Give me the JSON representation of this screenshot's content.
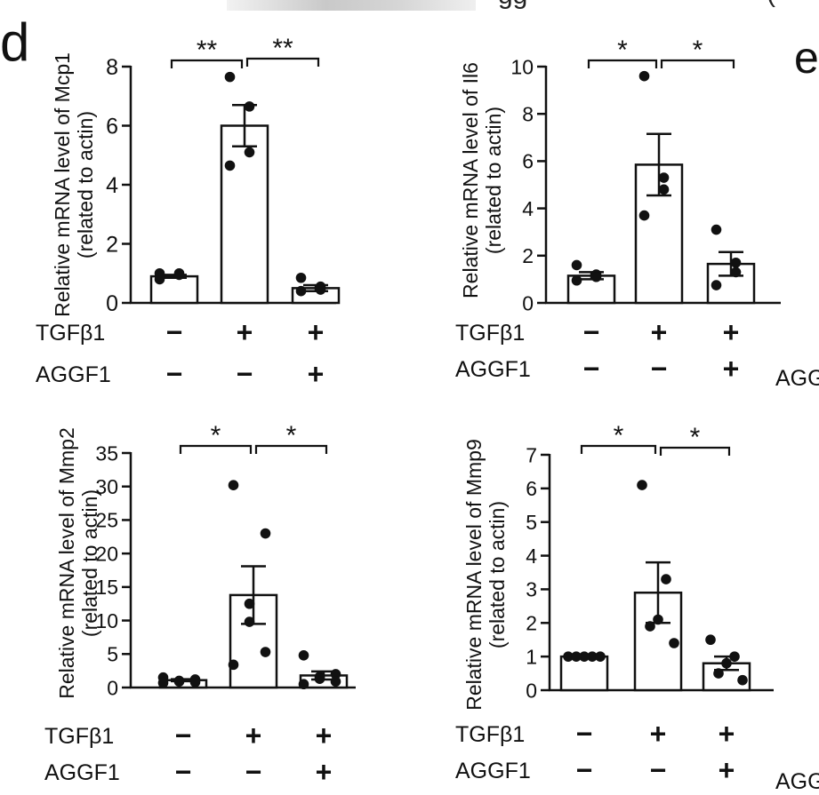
{
  "figure": {
    "panel_d_label": "d",
    "panel_e_label": "e",
    "row_labels": [
      "TGFβ1",
      "AGGF1"
    ],
    "edge_text_right_top": "AGG",
    "edge_text_right_bottom": "AGG",
    "top_fragment_text": "gg",
    "top_paren": "("
  },
  "chart_data": [
    {
      "type": "bar",
      "ylabel": [
        "Relative mRNA level of Mcp1",
        "(related to actin)"
      ],
      "ylim": [
        0,
        8
      ],
      "yticks": [
        0,
        2,
        4,
        6,
        8
      ],
      "categories": [
        "TGFβ1 − AGGF1 −",
        "TGFβ1 + AGGF1 −",
        "TGFβ1 + AGGF1 +"
      ],
      "treatment_rows": {
        "TGFβ1": [
          "−",
          "+",
          "+"
        ],
        "AGGF1": [
          "−",
          "−",
          "+"
        ]
      },
      "values": [
        0.9,
        6.0,
        0.5
      ],
      "sem": [
        0.05,
        0.7,
        0.1
      ],
      "points": [
        [
          1.0,
          1.0,
          0.95,
          0.8
        ],
        [
          7.65,
          6.65,
          5.1,
          4.65
        ],
        [
          0.85,
          0.55,
          0.45,
          0.4
        ]
      ],
      "significance": [
        {
          "from": 0,
          "to": 1,
          "label": "**"
        },
        {
          "from": 1,
          "to": 2,
          "label": "**"
        }
      ]
    },
    {
      "type": "bar",
      "ylabel": [
        "Relative mRNA level of Il6",
        "(related to actin)"
      ],
      "ylim": [
        0,
        10
      ],
      "yticks": [
        0,
        2,
        4,
        6,
        8,
        10
      ],
      "categories": [
        "TGFβ1 − AGGF1 −",
        "TGFβ1 + AGGF1 −",
        "TGFβ1 + AGGF1 +"
      ],
      "treatment_rows": {
        "TGFβ1": [
          "−",
          "+",
          "+"
        ],
        "AGGF1": [
          "−",
          "−",
          "+"
        ]
      },
      "values": [
        1.15,
        5.85,
        1.65
      ],
      "sem": [
        0.15,
        1.3,
        0.5
      ],
      "points": [
        [
          1.6,
          1.2,
          1.1,
          0.95
        ],
        [
          9.6,
          5.3,
          4.8,
          3.7
        ],
        [
          3.1,
          1.7,
          1.3,
          0.75
        ]
      ],
      "significance": [
        {
          "from": 0,
          "to": 1,
          "label": "*"
        },
        {
          "from": 1,
          "to": 2,
          "label": "*"
        }
      ]
    },
    {
      "type": "bar",
      "ylabel": [
        "Relative mRNA level of Mmp2",
        "(related to actin)"
      ],
      "ylim": [
        0,
        35
      ],
      "yticks": [
        0,
        5,
        10,
        15,
        20,
        25,
        30,
        35
      ],
      "categories": [
        "TGFβ1 − AGGF1 −",
        "TGFβ1 + AGGF1 −",
        "TGFβ1 + AGGF1 +"
      ],
      "treatment_rows": {
        "TGFβ1": [
          "−",
          "+",
          "+"
        ],
        "AGGF1": [
          "−",
          "−",
          "+"
        ]
      },
      "values": [
        1.1,
        13.8,
        1.8
      ],
      "sem": [
        0.15,
        4.3,
        0.6
      ],
      "points": [
        [
          1.5,
          1.2,
          1.0,
          0.9,
          0.8,
          0.7
        ],
        [
          30.2,
          23.0,
          12.5,
          9.8,
          5.3,
          3.4
        ],
        [
          4.8,
          2.0,
          1.6,
          1.3,
          0.9,
          0.5
        ]
      ],
      "significance": [
        {
          "from": 0,
          "to": 1,
          "label": "*"
        },
        {
          "from": 1,
          "to": 2,
          "label": "*"
        }
      ]
    },
    {
      "type": "bar",
      "ylabel": [
        "Relative mRNA level of Mmp9",
        "(related to actin)"
      ],
      "ylim": [
        0,
        7
      ],
      "yticks": [
        0,
        1,
        2,
        3,
        4,
        5,
        6,
        7
      ],
      "categories": [
        "TGFβ1 − AGGF1 −",
        "TGFβ1 + AGGF1 −",
        "TGFβ1 + AGGF1 +"
      ],
      "treatment_rows": {
        "TGFβ1": [
          "−",
          "+",
          "+"
        ],
        "AGGF1": [
          "−",
          "−",
          "+"
        ]
      },
      "values": [
        1.0,
        2.9,
        0.8
      ],
      "sem": [
        0.02,
        0.9,
        0.2
      ],
      "points": [
        [
          1.0,
          1.0,
          1.0,
          1.0,
          1.0
        ],
        [
          6.1,
          3.3,
          2.1,
          1.9,
          1.4
        ],
        [
          1.5,
          1.0,
          0.8,
          0.5,
          0.3
        ]
      ],
      "significance": [
        {
          "from": 0,
          "to": 1,
          "label": "*"
        },
        {
          "from": 1,
          "to": 2,
          "label": "*"
        }
      ]
    }
  ]
}
